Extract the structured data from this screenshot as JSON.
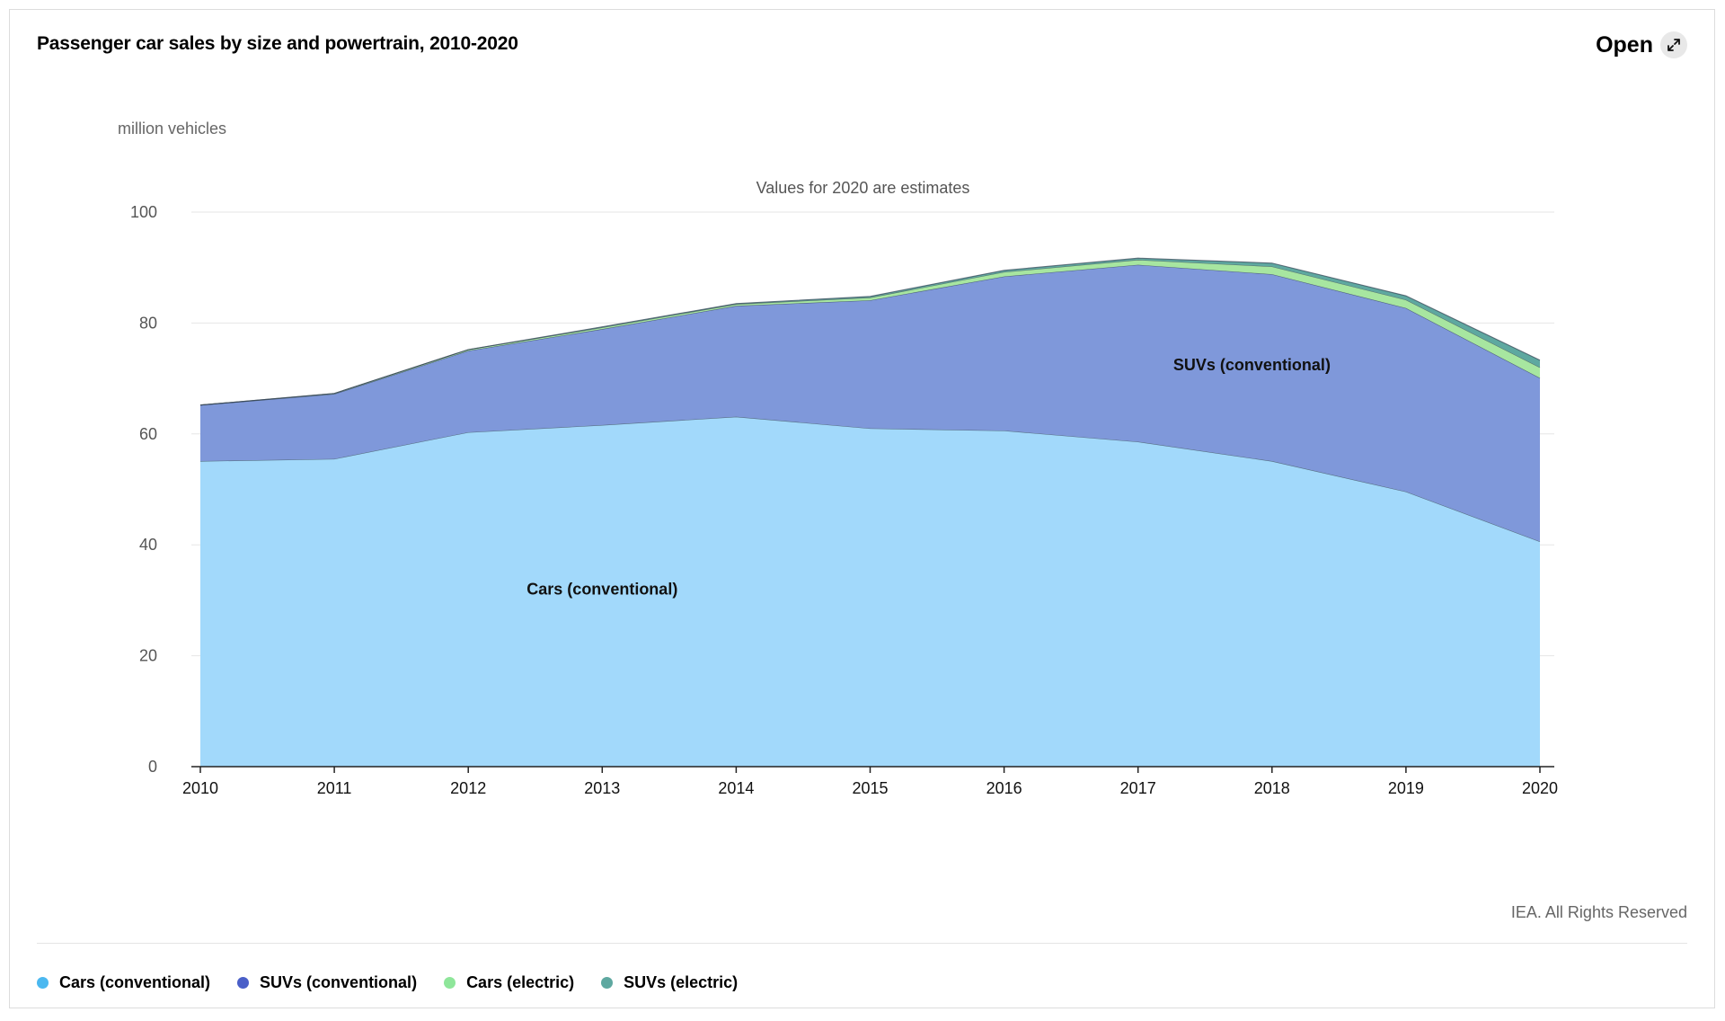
{
  "header": {
    "title": "Passenger car sales by size and powertrain, 2010-2020",
    "open_label": "Open",
    "open_icon": "expand-arrows-icon"
  },
  "chart_data": {
    "type": "area",
    "stacked": true,
    "title": "Passenger car sales by size and powertrain, 2010-2020",
    "ylabel": "million vehicles",
    "note": "Values for 2020 are estimates",
    "ylim": [
      0,
      100
    ],
    "yticks": [
      0,
      20,
      40,
      60,
      80,
      100
    ],
    "categories": [
      "2010",
      "2011",
      "2012",
      "2013",
      "2014",
      "2015",
      "2016",
      "2017",
      "2018",
      "2019",
      "2020"
    ],
    "series": [
      {
        "name": "Cars (conventional)",
        "color": "#a2d9fb",
        "values": [
          55.1,
          55.5,
          60.3,
          61.6,
          63.1,
          61.0,
          60.6,
          58.6,
          55.1,
          49.6,
          40.6
        ]
      },
      {
        "name": "SUVs (conventional)",
        "color": "#7f98da",
        "values": [
          10.1,
          11.7,
          14.7,
          17.3,
          20.0,
          23.1,
          27.8,
          31.9,
          33.7,
          33.1,
          29.5
        ]
      },
      {
        "name": "Cars (electric)",
        "color": "#a7e6a0",
        "values": [
          0.0,
          0.1,
          0.2,
          0.3,
          0.3,
          0.5,
          0.8,
          0.9,
          1.4,
          1.5,
          1.9
        ]
      },
      {
        "name": "SUVs (electric)",
        "color": "#5ea8a0",
        "values": [
          0.0,
          0.0,
          0.0,
          0.1,
          0.1,
          0.2,
          0.3,
          0.3,
          0.6,
          0.7,
          1.3
        ]
      }
    ],
    "annotations": [
      {
        "text": "SUVs (conventional)",
        "x": "2017.85",
        "y": 71.5
      },
      {
        "text": "Cars (conventional)",
        "x": "2013.0",
        "y": 31.0
      }
    ],
    "grid": true,
    "legend_position": "bottom-left"
  },
  "legend": [
    {
      "label": "Cars (conventional)",
      "color": "#4bb8f0"
    },
    {
      "label": "SUVs (conventional)",
      "color": "#4a5fc8"
    },
    {
      "label": "Cars (electric)",
      "color": "#8ee69a"
    },
    {
      "label": "SUVs (electric)",
      "color": "#5ea8a0"
    }
  ],
  "footer": {
    "copyright": "IEA. All Rights Reserved"
  }
}
